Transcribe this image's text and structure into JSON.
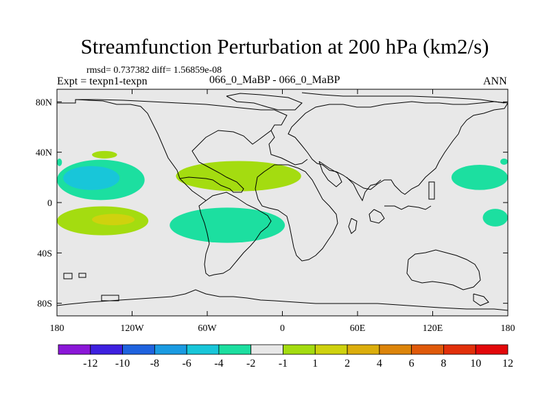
{
  "chart_data": {
    "type": "contour-map",
    "title": "Streamfunction Perturbation at 200 hPa (km2/s)",
    "stats_line": "rmsd= 0.737382 diff= 1.56859e-08",
    "left_label": "Expt = texpn1-texpn",
    "center_label": "066_0_MaBP - 066_0_MaBP",
    "right_label": "ANN",
    "x_ticks": [
      "180",
      "120W",
      "60W",
      "0",
      "60E",
      "120E",
      "180"
    ],
    "y_ticks": [
      "80N",
      "40N",
      "0",
      "40S",
      "80S"
    ],
    "xlim": [
      -180,
      180
    ],
    "ylim": [
      -90,
      90
    ],
    "colorbar": {
      "labels": [
        "-12",
        "-10",
        "-8",
        "-6",
        "-4",
        "-2",
        "-1",
        "1",
        "2",
        "4",
        "6",
        "8",
        "10",
        "12"
      ],
      "colors": [
        "#8b17d8",
        "#3e20e0",
        "#1f63df",
        "#1a9be2",
        "#18c6d9",
        "#1cdfa0",
        "#e8e8e8",
        "#a4dc10",
        "#cfd20e",
        "#dcae0c",
        "#dd850a",
        "#e05a0a",
        "#e2300a",
        "#e3080a"
      ]
    },
    "background_color": "#e8e8e8",
    "regions": [
      {
        "name": "n-pacific-high",
        "value": 2,
        "color": "#a4dc10",
        "lon": [
          -152,
          -132
        ],
        "lat": [
          35,
          41
        ]
      },
      {
        "name": "far-west-edge-north",
        "value": -2,
        "color": "#1cdfa0",
        "lon": [
          -180,
          -176
        ],
        "lat": [
          29,
          35
        ]
      },
      {
        "name": "far-east-edge-north",
        "value": -2,
        "color": "#1cdfa0",
        "lon": [
          174,
          180
        ],
        "lat": [
          30,
          35
        ]
      },
      {
        "name": "east-pacific-north",
        "value": -2,
        "color": "#1cdfa0",
        "lon": [
          -180,
          -110
        ],
        "lat": [
          2,
          34
        ]
      },
      {
        "name": "east-pacific-north-core",
        "value": -4,
        "color": "#18c6d9",
        "lon": [
          -175,
          -130
        ],
        "lat": [
          10,
          29
        ]
      },
      {
        "name": "atlantic-north",
        "value": 2,
        "color": "#a4dc10",
        "lon": [
          -85,
          15
        ],
        "lat": [
          9,
          33
        ]
      },
      {
        "name": "west-pacific-north",
        "value": -2,
        "color": "#1cdfa0",
        "lon": [
          135,
          180
        ],
        "lat": [
          10,
          30
        ]
      },
      {
        "name": "east-pacific-south",
        "value": 2,
        "color": "#a4dc10",
        "lon": [
          -180,
          -107
        ],
        "lat": [
          -26,
          -3
        ]
      },
      {
        "name": "east-pacific-south-core",
        "value": 4,
        "color": "#cfd20e",
        "lon": [
          -152,
          -118
        ],
        "lat": [
          -18,
          -9
        ]
      },
      {
        "name": "atlantic-south",
        "value": -2,
        "color": "#1cdfa0",
        "lon": [
          -90,
          2
        ],
        "lat": [
          -32,
          -4
        ]
      },
      {
        "name": "west-pacific-south",
        "value": -2,
        "color": "#1cdfa0",
        "lon": [
          160,
          180
        ],
        "lat": [
          -19,
          -5
        ]
      }
    ]
  }
}
